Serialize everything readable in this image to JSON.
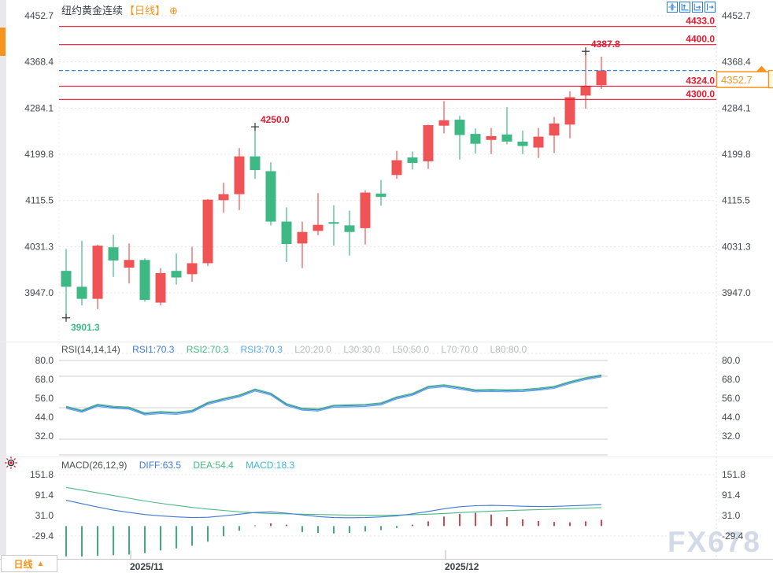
{
  "header": {
    "title": "纽约黄金连续",
    "period_tag": "【日线】",
    "expand_glyph": "⊕",
    "toolbar_icons": [
      "crosshair-icon",
      "scale-vertical-icon",
      "scale-horizontal-icon",
      "jump-latest-icon"
    ]
  },
  "watermark": "FX678",
  "bottom_bar": {
    "tab_label": "日线",
    "tab_arrow": "▲",
    "dates": [
      {
        "label": "2025/11",
        "x": 165
      },
      {
        "label": "2025/12",
        "x": 565
      }
    ]
  },
  "colors": {
    "bull": "#ef5356",
    "bear": "#3eb986",
    "level_line": "#e6182e",
    "current_line": "#2f8be8",
    "accent_orange": "#f7941e",
    "axis_text": "#43474f",
    "muted_text": "#b6bac2",
    "grid": "#e4e4e6",
    "rsi_grid": "#cccccc",
    "rsi1": "#3f7ad1",
    "rsi2": "#43b97f",
    "rsi3": "#55a7e3",
    "diff": "#3f7ad1",
    "dea": "#4cba85",
    "hist_pos": "#cf4a52",
    "hist_neg": "#43a97e",
    "marker": "#333333",
    "watermark": "#d3dae7"
  },
  "chart_data": [
    {
      "type": "candlestick",
      "panel": "price",
      "title": "纽约黄金连续 日线",
      "y_ticks": [
        4452.7,
        4368.4,
        4284.1,
        4199.8,
        4115.5,
        4031.3,
        3947.0
      ],
      "ylim": [
        3893.0,
        4462.7
      ],
      "grid": "dotted-horizontal",
      "levels": [
        4433.0,
        4400.0,
        4324.0,
        4300.0
      ],
      "current_price": 4352.7,
      "annotations": [
        {
          "text": "4250.0",
          "price": 4250.0,
          "index": 12,
          "placement": "above",
          "color": "#e6182e"
        },
        {
          "text": "3901.3",
          "price": 3901.3,
          "index": 0,
          "placement": "below",
          "color": "#3eb986"
        },
        {
          "text": "4387.8",
          "price": 4387.8,
          "index": 33,
          "placement": "above",
          "color": "#e6182e"
        }
      ],
      "candles_format": [
        "open",
        "high",
        "low",
        "close"
      ],
      "candles": [
        [
          3987,
          4027,
          3901.3,
          3958
        ],
        [
          3958,
          4042,
          3924,
          3936
        ],
        [
          3936,
          4035,
          3917,
          4033
        ],
        [
          4030,
          4053,
          3976,
          4006
        ],
        [
          3993,
          4037,
          3964,
          4007
        ],
        [
          4007,
          4010,
          3931,
          3934
        ],
        [
          3929,
          3992,
          3924,
          3983
        ],
        [
          3987,
          4019,
          3962,
          3975
        ],
        [
          3981,
          4031,
          3967,
          4001
        ],
        [
          4001,
          4118,
          3996,
          4117
        ],
        [
          4116,
          4148,
          4093,
          4127
        ],
        [
          4127,
          4211,
          4098,
          4196
        ],
        [
          4196,
          4250,
          4155,
          4171
        ],
        [
          4169,
          4185,
          4070,
          4077
        ],
        [
          4077,
          4103,
          4003,
          4036
        ],
        [
          4037,
          4077,
          3992,
          4058
        ],
        [
          4060,
          4129,
          4052,
          4071
        ],
        [
          4076,
          4107,
          4033,
          4073
        ],
        [
          4070,
          4097,
          4015,
          4058
        ],
        [
          4065,
          4134,
          4035,
          4130
        ],
        [
          4128,
          4153,
          4106,
          4122
        ],
        [
          4162,
          4206,
          4155,
          4189
        ],
        [
          4194,
          4205,
          4172,
          4184
        ],
        [
          4187,
          4254,
          4173,
          4253
        ],
        [
          4252,
          4297,
          4238,
          4262
        ],
        [
          4263,
          4270,
          4190,
          4235
        ],
        [
          4237,
          4247,
          4201,
          4219
        ],
        [
          4226,
          4248,
          4200,
          4233
        ],
        [
          4236,
          4286,
          4218,
          4223
        ],
        [
          4223,
          4243,
          4200,
          4215
        ],
        [
          4212,
          4248,
          4193,
          4232
        ],
        [
          4234,
          4268,
          4202,
          4256
        ],
        [
          4254,
          4315,
          4229,
          4304
        ],
        [
          4307,
          4387.8,
          4283,
          4325
        ],
        [
          4326,
          4378,
          4319,
          4352.7
        ]
      ]
    },
    {
      "type": "line",
      "panel": "rsi",
      "header": {
        "name": "RSI(14,14,14)",
        "rsi1": "RSI1:70.3",
        "rsi2": "RSI2:70.3",
        "rsi3": "RSI3:70.3",
        "l20": "L20:20.0",
        "l30": "L30:30.0",
        "l50": "L50:50.0",
        "l70": "L70:70.0",
        "l80": "L80:80.0"
      },
      "y_ticks": [
        80.0,
        68.0,
        56.0,
        44.0,
        32.0
      ],
      "hlines": [
        80,
        70,
        50,
        30,
        20
      ],
      "values": [
        50.3,
        47.8,
        51.6,
        50.3,
        49.8,
        46.1,
        47,
        46.5,
        47.8,
        52.8,
        55.3,
        57.5,
        61.3,
        58.7,
        52,
        49.1,
        48.6,
        51,
        51.3,
        51.5,
        52.5,
        56.3,
        58.5,
        63,
        64,
        62.5,
        60.8,
        61,
        60.8,
        61,
        61.8,
        63,
        66,
        68.5,
        70.3
      ]
    },
    {
      "type": "macd",
      "panel": "macd",
      "header": {
        "name": "MACD(26,12,9)",
        "diff": "DIFF:63.5",
        "dea": "DEA:54.4",
        "macd": "MACD:18.3"
      },
      "y_ticks": [
        151.8,
        91.4,
        31.0,
        -29.4
      ],
      "diff": [
        76,
        66,
        56,
        47,
        40,
        34,
        30,
        27,
        25,
        26,
        30,
        35,
        40,
        42,
        38,
        33,
        28,
        25,
        24.5,
        25,
        27,
        30,
        36,
        43,
        51,
        57,
        60,
        61,
        60,
        58.5,
        57.5,
        58,
        59.5,
        61.5,
        63.5
      ],
      "dea": [
        114,
        106,
        98,
        90,
        82,
        74,
        67,
        61,
        55,
        50,
        46,
        42,
        39,
        37,
        36,
        35,
        34,
        33,
        32.5,
        32,
        32,
        32.5,
        33.5,
        35,
        37,
        39.5,
        42,
        44,
        45.5,
        47,
        48.5,
        50,
        51.5,
        53,
        54.4
      ],
      "histogram": [
        -90,
        -90,
        -88,
        -86,
        -84,
        -80,
        -72,
        -66,
        -58,
        -46,
        -30,
        -14,
        2,
        8,
        4,
        -18,
        -20,
        -22,
        -20,
        -16,
        -12,
        -6,
        4,
        14,
        28,
        36,
        39,
        34,
        26,
        20,
        15,
        12,
        11,
        14,
        18.3
      ]
    }
  ]
}
